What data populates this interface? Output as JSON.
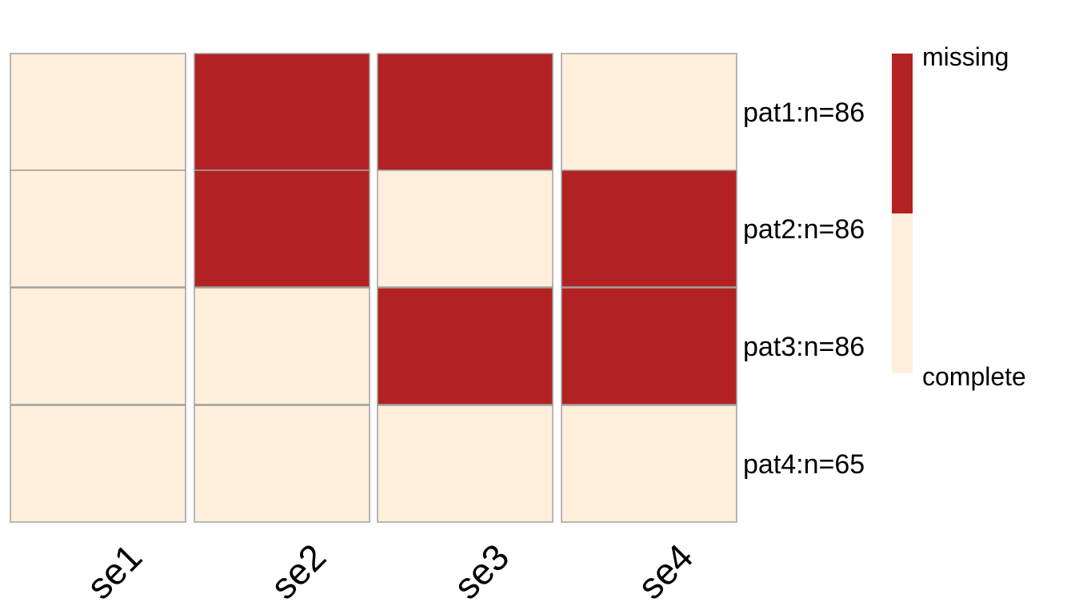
{
  "chart_data": {
    "type": "heatmap",
    "rows": [
      "pat1:n=86",
      "pat2:n=86",
      "pat3:n=86",
      "pat4:n=65"
    ],
    "columns": [
      "se1",
      "se2",
      "se3",
      "se4"
    ],
    "values": [
      [
        "complete",
        "missing",
        "missing",
        "complete"
      ],
      [
        "complete",
        "missing",
        "complete",
        "missing"
      ],
      [
        "complete",
        "complete",
        "missing",
        "missing"
      ],
      [
        "complete",
        "complete",
        "complete",
        "complete"
      ]
    ],
    "legend": {
      "position": "right",
      "items": [
        {
          "label": "missing",
          "color": "#b22222"
        },
        {
          "label": "complete",
          "color": "#ffefdb"
        }
      ]
    },
    "cell_border_color": "#a0a0a0"
  }
}
